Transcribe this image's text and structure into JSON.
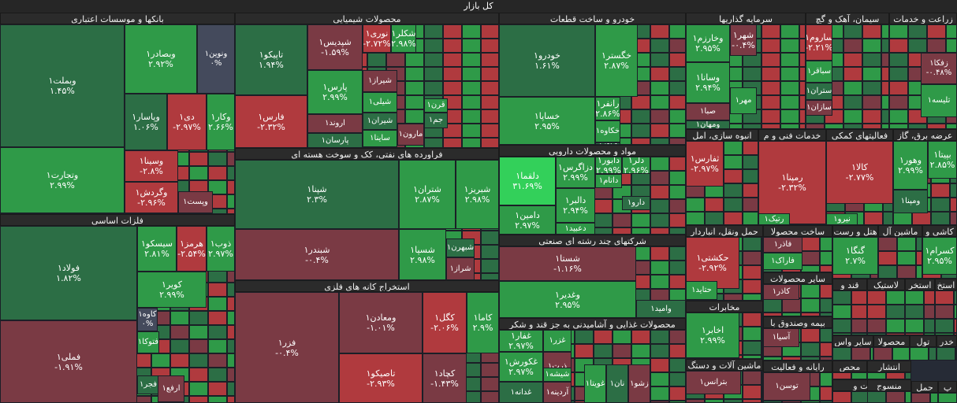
{
  "chart_data": {
    "type": "treemap",
    "title": "کل بازار",
    "colors": {
      "positive": "#2f9a48",
      "positive_dark": "#2c6e45",
      "negative": "#b03a3e",
      "negative_dark": "#7a3a44",
      "neutral": "#444a5c",
      "strong_positive": "#33d05a"
    },
    "sectors": [
      {
        "name": "بانکها و موسسات اعتباری",
        "stocks": [
          {
            "symbol": "وبملت۱",
            "change": "۱.۴۵%",
            "value": 1.45
          },
          {
            "symbol": "وبصادر۱",
            "change": "۲.۹۲%",
            "value": 2.92
          },
          {
            "symbol": "ونوین۱",
            "change": "۰%",
            "value": 0
          },
          {
            "symbol": "وتجارت۱",
            "change": "۲.۹۹%",
            "value": 2.99
          },
          {
            "symbol": "وپاسار۱",
            "change": "۱.۰۶%",
            "value": 1.06
          },
          {
            "symbol": "دی۱",
            "change": "-۲.۹۷%",
            "value": -2.97
          },
          {
            "symbol": "وکار۱",
            "change": "۲.۶۶%",
            "value": 2.66
          },
          {
            "symbol": "وسینا۱",
            "change": "-۲.۸%",
            "value": -2.8
          },
          {
            "symbol": "وگردش۱",
            "change": "-۲.۹۶%",
            "value": -2.96
          },
          {
            "symbol": "وپست۱",
            "change": "",
            "value": null
          }
        ]
      },
      {
        "name": "فلزات اساسی",
        "stocks": [
          {
            "symbol": "فولاد۱",
            "change": "۱.۸۲%",
            "value": 1.82
          },
          {
            "symbol": "سیسکو۱",
            "change": "۲.۸۱%",
            "value": 2.81
          },
          {
            "symbol": "هرمز۱",
            "change": "-۲.۵۴%",
            "value": -2.54
          },
          {
            "symbol": "ذوب۱",
            "change": "۲.۹۷%",
            "value": 2.97
          },
          {
            "symbol": "کویر۱",
            "change": "۲.۹۹%",
            "value": 2.99
          },
          {
            "symbol": "فملی۱",
            "change": "-۱.۹۱%",
            "value": -1.91
          },
          {
            "symbol": "کاوه۱",
            "change": "۰%",
            "value": 0
          },
          {
            "symbol": "فتوکا۱",
            "change": "",
            "value": null
          },
          {
            "symbol": "فجر۱",
            "change": "",
            "value": null
          },
          {
            "symbol": "ارفع۱",
            "change": "",
            "value": null
          }
        ]
      },
      {
        "name": "محصولات شیمیایی",
        "stocks": [
          {
            "symbol": "تاپیکو۱",
            "change": "۱.۹۴%",
            "value": 1.94
          },
          {
            "symbol": "شپدیس۱",
            "change": "-۱.۵۹%",
            "value": -1.59
          },
          {
            "symbol": "نوری۱",
            "change": "-۲.۷۲%",
            "value": -2.72
          },
          {
            "symbol": "شکلر۱",
            "change": "۲.۹۸%",
            "value": 2.98
          },
          {
            "symbol": "فارس۱",
            "change": "-۲.۳۲%",
            "value": -2.32
          },
          {
            "symbol": "پارس۱",
            "change": "۲.۹۹%",
            "value": 2.99
          },
          {
            "symbol": "شیراز۱",
            "change": "",
            "value": null
          },
          {
            "symbol": "شیلی۱",
            "change": "",
            "value": null
          },
          {
            "symbol": "شیران۱",
            "change": "",
            "value": null
          },
          {
            "symbol": "اروند۱",
            "change": "",
            "value": null
          },
          {
            "symbol": "ساینا۱",
            "change": "",
            "value": null
          },
          {
            "symbol": "پارسان۱",
            "change": "",
            "value": null
          },
          {
            "symbol": "پترول۱",
            "change": "",
            "value": null
          },
          {
            "symbol": "قرن۱",
            "change": "",
            "value": null
          },
          {
            "symbol": "جم۱",
            "change": "",
            "value": null
          },
          {
            "symbol": "مارون۱",
            "change": "",
            "value": null
          }
        ]
      },
      {
        "name": "فراورده های نفتی، کک و سوخت هسته ای",
        "stocks": [
          {
            "symbol": "شپنا۱",
            "change": "۲.۳%",
            "value": 2.3
          },
          {
            "symbol": "شتران۱",
            "change": "۲.۸۷%",
            "value": 2.87
          },
          {
            "symbol": "شبریز۱",
            "change": "۲.۹۸%",
            "value": 2.98
          },
          {
            "symbol": "شبندر۱",
            "change": "-۰.۴%",
            "value": -0.4
          },
          {
            "symbol": "شسپا۱",
            "change": "۲.۹۸%",
            "value": 2.98
          },
          {
            "symbol": "شبهرن۱",
            "change": "",
            "value": null
          },
          {
            "symbol": "شراز۱",
            "change": "",
            "value": null
          }
        ]
      },
      {
        "name": "استخراج کانه های فلزی",
        "stocks": [
          {
            "symbol": "فزر۱",
            "change": "-۰.۴%",
            "value": -0.4
          },
          {
            "symbol": "ومعادن۱",
            "change": "-۱.۰۱%",
            "value": -1.01
          },
          {
            "symbol": "کگل۱",
            "change": "-۲.۰۶%",
            "value": -2.06
          },
          {
            "symbol": "کاما۱",
            "change": "۲.۹%",
            "value": 2.9
          },
          {
            "symbol": "تاصیکو۱",
            "change": "-۲.۹۳%",
            "value": -2.93
          },
          {
            "symbol": "کچاد۱",
            "change": "-۱.۴۳%",
            "value": -1.43
          }
        ]
      },
      {
        "name": "خودرو و ساخت قطعات",
        "stocks": [
          {
            "symbol": "خودرو۱",
            "change": "۱.۶۱%",
            "value": 1.61
          },
          {
            "symbol": "خگستر۱",
            "change": "۲.۸۷%",
            "value": 2.87
          },
          {
            "symbol": "خساپا۱",
            "change": "۲.۹۵%",
            "value": 2.95
          },
          {
            "symbol": "رانفر۱",
            "change": "۲.۸۶%",
            "value": 2.86
          },
          {
            "symbol": "خکاوه۱",
            "change": "",
            "value": null
          },
          {
            "symbol": "خاور۱",
            "change": "",
            "value": null
          }
        ]
      },
      {
        "name": "مواد و محصولات دارویی",
        "stocks": [
          {
            "symbol": "دلقما۱",
            "change": "۳۱.۶۹%",
            "value": 31.69
          },
          {
            "symbol": "دزاگرس۱",
            "change": "۲.۹۹%",
            "value": 2.99
          },
          {
            "symbol": "دابور۱",
            "change": "۲.۹۹%",
            "value": 2.99
          },
          {
            "symbol": "دلر۱",
            "change": "۲.۹۶%",
            "value": 2.96
          },
          {
            "symbol": "داتام۱",
            "change": "",
            "value": null
          },
          {
            "symbol": "دالبر۱",
            "change": "۲.۹۴%",
            "value": 2.94
          },
          {
            "symbol": "دامین۱",
            "change": "۲.۹۷%",
            "value": 2.97
          },
          {
            "symbol": "دعبید۱",
            "change": "",
            "value": null
          },
          {
            "symbol": "دارو۱",
            "change": "",
            "value": null
          }
        ]
      },
      {
        "name": "شرکتهای چند رشته ای صنعتی",
        "stocks": [
          {
            "symbol": "شستا۱",
            "change": "-۱.۱۶%",
            "value": -1.16
          },
          {
            "symbol": "وغدیر۱",
            "change": "۲.۹۵%",
            "value": 2.95
          },
          {
            "symbol": "وامید۱",
            "change": "",
            "value": null
          }
        ]
      },
      {
        "name": "محصولات غذایی و آشامیدنی به جز قند و شکر",
        "stocks": [
          {
            "symbol": "غفار۱",
            "change": "۲.۹۷%",
            "value": 2.97
          },
          {
            "symbol": "غزر۱",
            "change": "",
            "value": null
          },
          {
            "symbol": "غکورش۱",
            "change": "۲.۹۷%",
            "value": 2.97
          },
          {
            "symbol": "ذرت۱",
            "change": "",
            "value": null
          },
          {
            "symbol": "شیشه۱",
            "change": "",
            "value": null
          },
          {
            "symbol": "غدانه۱",
            "change": "",
            "value": null
          },
          {
            "symbol": "آردینه۱",
            "change": "",
            "value": null
          },
          {
            "symbol": "غویتا۱",
            "change": "",
            "value": null
          },
          {
            "symbol": "نان۱",
            "change": "",
            "value": null
          },
          {
            "symbol": "زشو۱",
            "change": "",
            "value": null
          }
        ]
      },
      {
        "name": "سرمایه گذاریها",
        "stocks": [
          {
            "symbol": "وخارزم۱",
            "change": "۲.۹۵%",
            "value": 2.95
          },
          {
            "symbol": "شهر۱",
            "change": "-۰.۴%",
            "value": -0.4
          },
          {
            "symbol": "وسانا۱",
            "change": "۲.۹۴%",
            "value": 2.94
          },
          {
            "symbol": "صبا۱",
            "change": "",
            "value": null
          },
          {
            "symbol": "مهر۱",
            "change": "",
            "value": null
          },
          {
            "symbol": "ومهان۱",
            "change": "",
            "value": null
          }
        ]
      },
      {
        "name": "سیمان، آهک و گچ",
        "stocks": [
          {
            "symbol": "ساروم۱",
            "change": "-۲.۲۱%",
            "value": -2.21
          },
          {
            "symbol": "سباقر۱",
            "change": "",
            "value": null
          },
          {
            "symbol": "ستران۱",
            "change": "",
            "value": null
          },
          {
            "symbol": "سازان۱",
            "change": "",
            "value": null
          }
        ]
      },
      {
        "name": "زراعت و خدمات",
        "stocks": [
          {
            "symbol": "زفکا۱",
            "change": "-۰.۴۸%",
            "value": -0.48
          },
          {
            "symbol": "تلیسه۱",
            "change": "",
            "value": null
          }
        ]
      },
      {
        "name": "انبوه سازی، امل",
        "stocks": [
          {
            "symbol": "ثفارس۱",
            "change": "-۲.۹۷%",
            "value": -2.97
          }
        ]
      },
      {
        "name": "خدمات فنی و م",
        "stocks": [
          {
            "symbol": "رمپنا۱",
            "change": "-۲.۳۲%",
            "value": -2.32
          },
          {
            "symbol": "رتیک۱",
            "change": "",
            "value": null
          }
        ]
      },
      {
        "name": "فعالیتهای کمکی",
        "stocks": [
          {
            "symbol": "کالا۱",
            "change": "-۲.۷۷%",
            "value": -2.77
          },
          {
            "symbol": "نیرو۱",
            "change": "",
            "value": null
          }
        ]
      },
      {
        "name": "عرضه برق، گاز",
        "stocks": [
          {
            "symbol": "وهور۱",
            "change": "۲.۹۹%",
            "value": 2.99
          },
          {
            "symbol": "بپیتا۱",
            "change": "۲.۸۵%",
            "value": 2.85
          },
          {
            "symbol": "ومپنا۱",
            "change": "",
            "value": null
          }
        ]
      },
      {
        "name": "حمل ونقل، انباردار",
        "stocks": [
          {
            "symbol": "حکشتی۱",
            "change": "-۲.۹۲%",
            "value": -2.92
          },
          {
            "symbol": "حتاید۱",
            "change": "",
            "value": null
          }
        ]
      },
      {
        "name": "مخابرات",
        "stocks": [
          {
            "symbol": "اخابر۱",
            "change": "۲.۹۹%",
            "value": 2.99
          }
        ]
      },
      {
        "name": "ساخت محصولا",
        "stocks": [
          {
            "symbol": "فاذر۱",
            "change": "",
            "value": null
          },
          {
            "symbol": "فاراک۱",
            "change": "",
            "value": null
          }
        ]
      },
      {
        "name": "سایر محصولات",
        "stocks": [
          {
            "symbol": "کاذر۱",
            "change": "",
            "value": null
          }
        ]
      },
      {
        "name": "بیمه وصندوق با",
        "stocks": [
          {
            "symbol": "آسیا۱",
            "change": "",
            "value": null
          }
        ]
      },
      {
        "name": "ماشین آلات و دستگ",
        "stocks": [
          {
            "symbol": "بترانس۱",
            "change": "",
            "value": null
          }
        ]
      },
      {
        "name": "رایانه و فعالیت",
        "stocks": [
          {
            "symbol": "توسن۱",
            "change": "",
            "value": null
          }
        ]
      },
      {
        "name": "هتل و رست",
        "stocks": [
          {
            "symbol": "گنگا۱",
            "change": "۲.۷%",
            "value": 2.7
          }
        ]
      },
      {
        "name": "ماشین آل",
        "stocks": []
      },
      {
        "name": "کاشی و",
        "stocks": [
          {
            "symbol": "کسرام۱",
            "change": "۲.۹۵%",
            "value": 2.95
          }
        ]
      },
      {
        "name": "قند و",
        "stocks": []
      },
      {
        "name": "لاستیک",
        "stocks": []
      },
      {
        "name": "استخر",
        "stocks": []
      },
      {
        "name": "استخ",
        "stocks": []
      },
      {
        "name": "سایر واس",
        "stocks": []
      },
      {
        "name": "محصولا",
        "stocks": []
      },
      {
        "name": "تول",
        "stocks": []
      },
      {
        "name": "خدر",
        "stocks": []
      },
      {
        "name": "محص",
        "stocks": []
      },
      {
        "name": "انتشار",
        "stocks": []
      },
      {
        "name": "اطلاعات و",
        "stocks": []
      },
      {
        "name": "منسوج",
        "stocks": [
          {
            "symbol": "بازرگام۱",
            "change": "",
            "value": null
          }
        ]
      },
      {
        "name": "حمل",
        "stocks": []
      },
      {
        "name": "پ",
        "stocks": []
      }
    ]
  }
}
